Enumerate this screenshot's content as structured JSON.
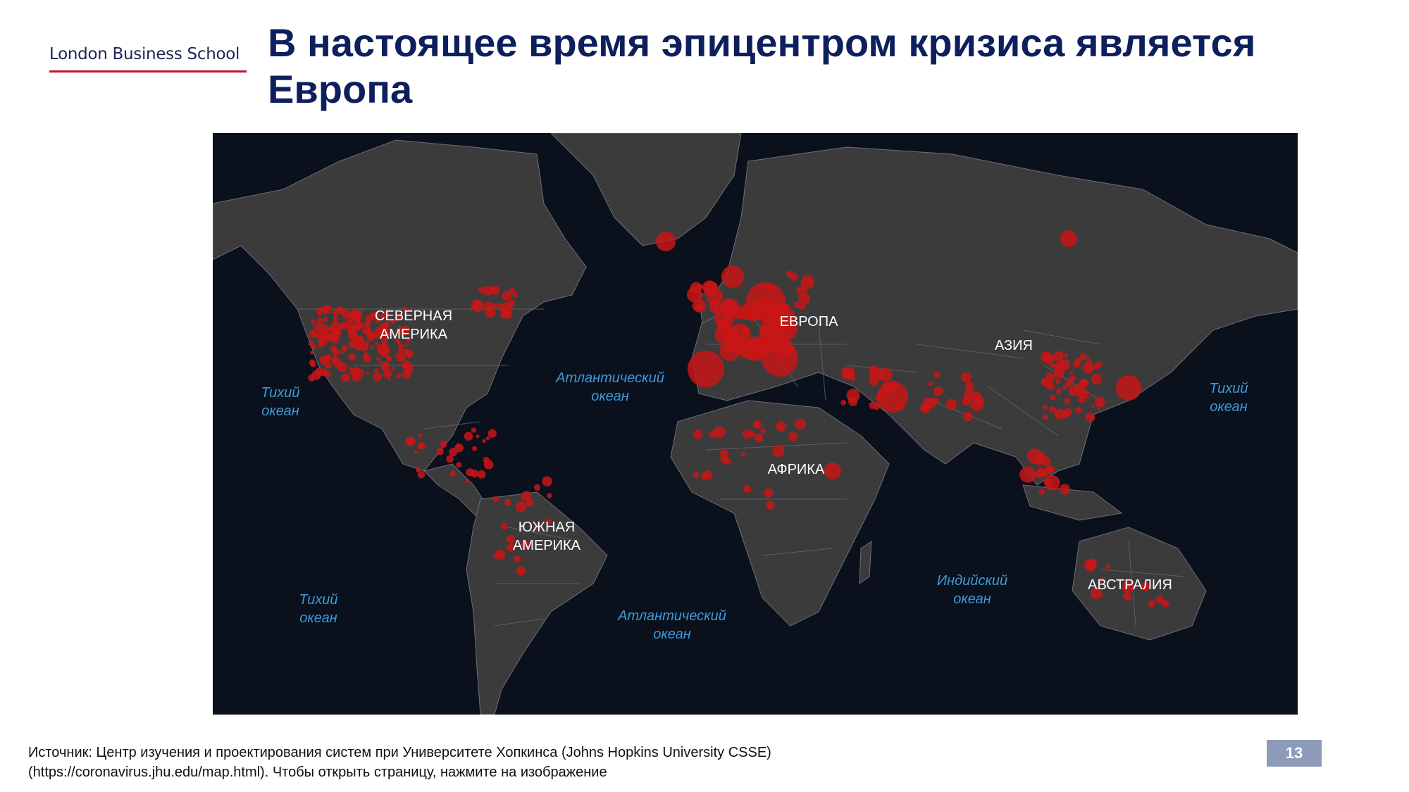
{
  "header": {
    "logo_text": "London Business School",
    "title": "В настоящее время эпицентром кризиса является Европа"
  },
  "map": {
    "background_color": "#0a111d",
    "land_color": "#3b3b3b",
    "border_color": "#6e6e78",
    "marker_color": "#c81616",
    "ocean_label_color": "#3d9ad6",
    "continent_labels": {
      "north_america": [
        "СЕВЕРНАЯ",
        "АМЕРИКА"
      ],
      "south_america": [
        "ЮЖНАЯ",
        "АМЕРИКА"
      ],
      "europe": "ЕВРОПА",
      "asia": "АЗИЯ",
      "africa": "АФРИКА",
      "australia": "АВСТРАЛИЯ"
    },
    "ocean_labels": {
      "pacific_west": [
        "Тихий",
        "океан"
      ],
      "pacific_southwest": [
        "Тихий",
        "океан"
      ],
      "pacific_east": [
        "Тихий",
        "океан"
      ],
      "atlantic_north": [
        "Атлантический",
        "океан"
      ],
      "atlantic_south": [
        "Атлантический",
        "океан"
      ],
      "indian": [
        "Индийский",
        "океан"
      ]
    }
  },
  "footer": {
    "source_line1": "Источник: Центр изучения и проектирования систем при Университете Хопкинса (Johns Hopkins University CSSE)",
    "source_line2": "(https://coronavirus.jhu.edu/map.html). Чтобы открыть страницу, нажмите на изображение",
    "page_number": "13"
  }
}
